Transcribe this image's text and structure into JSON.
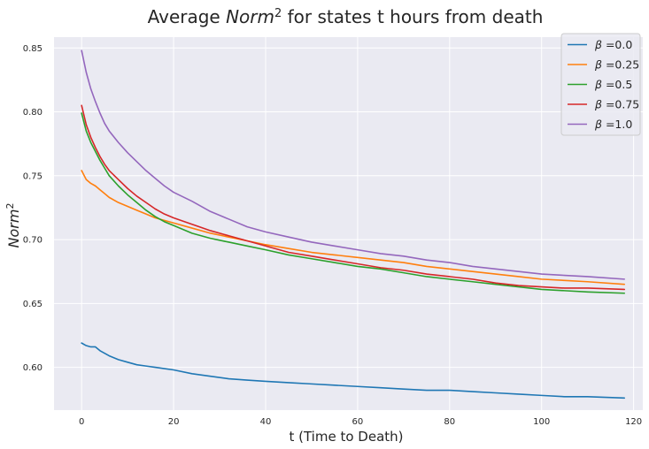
{
  "chart_data": {
    "type": "line",
    "title": {
      "prefix": "Average ",
      "math": "Norm",
      "sup": "2",
      "suffix": " for states t hours from death"
    },
    "xlabel": "t (Time to Death)",
    "ylabel": {
      "math": "Norm",
      "sup": "2"
    },
    "xlim": [
      -6,
      122
    ],
    "ylim": [
      0.5665,
      0.8585
    ],
    "xticks": [
      0,
      20,
      40,
      60,
      80,
      100,
      120
    ],
    "yticks": [
      0.6,
      0.65,
      0.7,
      0.75,
      0.8,
      0.85
    ],
    "grid": true,
    "legend_position": "top-right",
    "x": [
      0,
      1,
      2,
      3,
      4,
      5,
      6,
      8,
      10,
      12,
      14,
      16,
      18,
      20,
      24,
      28,
      32,
      36,
      40,
      45,
      50,
      55,
      60,
      65,
      70,
      75,
      80,
      85,
      90,
      95,
      100,
      105,
      110,
      118
    ],
    "series": [
      {
        "name": "0.0",
        "color": "#1f77b4",
        "values": [
          0.619,
          0.617,
          0.616,
          0.616,
          0.613,
          0.611,
          0.609,
          0.606,
          0.604,
          0.602,
          0.601,
          0.6,
          0.599,
          0.598,
          0.595,
          0.593,
          0.591,
          0.59,
          0.589,
          0.588,
          0.587,
          0.586,
          0.585,
          0.584,
          0.583,
          0.582,
          0.582,
          0.581,
          0.58,
          0.579,
          0.578,
          0.577,
          0.577,
          0.576
        ]
      },
      {
        "name": "0.25",
        "color": "#ff7f0e",
        "values": [
          0.754,
          0.747,
          0.744,
          0.742,
          0.739,
          0.736,
          0.733,
          0.729,
          0.726,
          0.723,
          0.72,
          0.717,
          0.715,
          0.713,
          0.709,
          0.705,
          0.702,
          0.699,
          0.696,
          0.693,
          0.69,
          0.688,
          0.686,
          0.684,
          0.682,
          0.679,
          0.677,
          0.675,
          0.673,
          0.671,
          0.669,
          0.668,
          0.667,
          0.665
        ]
      },
      {
        "name": "0.5",
        "color": "#2ca02c",
        "values": [
          0.799,
          0.785,
          0.776,
          0.769,
          0.762,
          0.756,
          0.75,
          0.742,
          0.735,
          0.729,
          0.723,
          0.718,
          0.714,
          0.711,
          0.705,
          0.701,
          0.698,
          0.695,
          0.692,
          0.688,
          0.685,
          0.682,
          0.679,
          0.677,
          0.674,
          0.671,
          0.669,
          0.667,
          0.665,
          0.663,
          0.661,
          0.66,
          0.659,
          0.658
        ]
      },
      {
        "name": "0.75",
        "color": "#d62728",
        "values": [
          0.805,
          0.79,
          0.78,
          0.772,
          0.765,
          0.759,
          0.754,
          0.747,
          0.74,
          0.734,
          0.729,
          0.724,
          0.72,
          0.717,
          0.712,
          0.707,
          0.703,
          0.699,
          0.695,
          0.69,
          0.687,
          0.684,
          0.681,
          0.678,
          0.676,
          0.673,
          0.671,
          0.669,
          0.666,
          0.664,
          0.663,
          0.662,
          0.662,
          0.661
        ]
      },
      {
        "name": "1.0",
        "color": "#9467bd",
        "values": [
          0.848,
          0.831,
          0.818,
          0.808,
          0.799,
          0.791,
          0.785,
          0.776,
          0.768,
          0.761,
          0.754,
          0.748,
          0.742,
          0.737,
          0.73,
          0.722,
          0.716,
          0.71,
          0.706,
          0.702,
          0.698,
          0.695,
          0.692,
          0.689,
          0.687,
          0.684,
          0.682,
          0.679,
          0.677,
          0.675,
          0.673,
          0.672,
          0.671,
          0.669
        ]
      }
    ],
    "legend_prefix": "β",
    "legend_eq": " ="
  }
}
